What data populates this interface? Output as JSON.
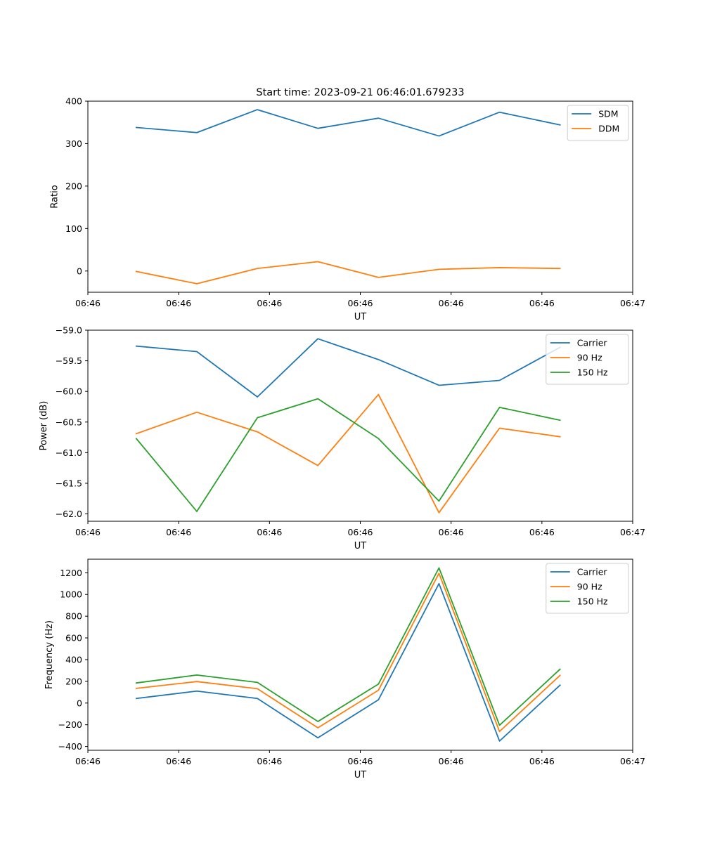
{
  "colors": {
    "blue": "#1f77b4",
    "orange": "#ff7f0e",
    "green": "#2ca02c"
  },
  "chart_data": [
    {
      "type": "line",
      "title": "Start time: 2023-09-21 06:46:01.679233",
      "xlabel": "UT",
      "ylabel": "Ratio",
      "x": [
        1,
        2,
        3,
        4,
        5,
        6,
        7,
        8
      ],
      "xlim": [
        0.2,
        9.2
      ],
      "xticks": [
        0.2,
        1.7,
        3.2,
        4.7,
        6.2,
        7.7,
        9.2
      ],
      "xtick_labels": [
        "06:46",
        "06:46",
        "06:46",
        "06:46",
        "06:46",
        "06:46",
        "06:47"
      ],
      "ylim": [
        -50,
        400
      ],
      "yticks": [
        0,
        100,
        200,
        300,
        400
      ],
      "ytick_labels": [
        "0",
        "100",
        "200",
        "300",
        "400"
      ],
      "legend": "top-right",
      "series": [
        {
          "name": "SDM",
          "color": "#1f77b4",
          "values": [
            338,
            326,
            380,
            336,
            360,
            318,
            374,
            344
          ]
        },
        {
          "name": "DDM",
          "color": "#ff7f0e",
          "values": [
            -1,
            -30,
            6,
            22,
            -15,
            4,
            8,
            6
          ]
        }
      ]
    },
    {
      "type": "line",
      "title": "",
      "xlabel": "UT",
      "ylabel": "Power (dB)",
      "x": [
        1,
        2,
        3,
        4,
        5,
        6,
        7,
        8
      ],
      "xlim": [
        0.2,
        9.2
      ],
      "xticks": [
        0.2,
        1.7,
        3.2,
        4.7,
        6.2,
        7.7,
        9.2
      ],
      "xtick_labels": [
        "06:46",
        "06:46",
        "06:46",
        "06:46",
        "06:46",
        "06:46",
        "06:47"
      ],
      "ylim": [
        -62.12,
        -59.0
      ],
      "yticks": [
        -59.0,
        -59.5,
        -60.0,
        -60.5,
        -61.0,
        -61.5,
        -62.0
      ],
      "ytick_labels": [
        "−59.0",
        "−59.5",
        "−60.0",
        "−60.5",
        "−61.0",
        "−61.5",
        "−62.0"
      ],
      "legend": "top-right",
      "series": [
        {
          "name": "Carrier",
          "color": "#1f77b4",
          "values": [
            -59.26,
            -59.35,
            -60.09,
            -59.14,
            -59.48,
            -59.9,
            -59.82,
            -59.28
          ]
        },
        {
          "name": "90 Hz",
          "color": "#ff7f0e",
          "values": [
            -60.69,
            -60.34,
            -60.66,
            -61.21,
            -60.05,
            -61.98,
            -60.6,
            -60.74
          ]
        },
        {
          "name": "150 Hz",
          "color": "#2ca02c",
          "values": [
            -60.77,
            -61.96,
            -60.43,
            -60.12,
            -60.77,
            -61.79,
            -60.26,
            -60.47
          ]
        }
      ]
    },
    {
      "type": "line",
      "title": "",
      "xlabel": "UT",
      "ylabel": "Frequency (Hz)",
      "x": [
        1,
        2,
        3,
        4,
        5,
        6,
        7,
        8
      ],
      "xlim": [
        0.2,
        9.2
      ],
      "xticks": [
        0.2,
        1.7,
        3.2,
        4.7,
        6.2,
        7.7,
        9.2
      ],
      "xtick_labels": [
        "06:46",
        "06:46",
        "06:46",
        "06:46",
        "06:46",
        "06:46",
        "06:47"
      ],
      "ylim": [
        -435,
        1325
      ],
      "yticks": [
        -400,
        -200,
        0,
        200,
        400,
        600,
        800,
        1000,
        1200
      ],
      "ytick_labels": [
        "−400",
        "−200",
        "0",
        "200",
        "400",
        "600",
        "800",
        "1000",
        "1200"
      ],
      "legend": "top-right",
      "series": [
        {
          "name": "Carrier",
          "color": "#1f77b4",
          "values": [
            42,
            110,
            42,
            -320,
            30,
            1100,
            -350,
            165
          ]
        },
        {
          "name": "90 Hz",
          "color": "#ff7f0e",
          "values": [
            135,
            198,
            132,
            -228,
            118,
            1195,
            -262,
            255
          ]
        },
        {
          "name": "150 Hz",
          "color": "#2ca02c",
          "values": [
            185,
            258,
            190,
            -170,
            175,
            1245,
            -205,
            312
          ]
        }
      ]
    }
  ]
}
